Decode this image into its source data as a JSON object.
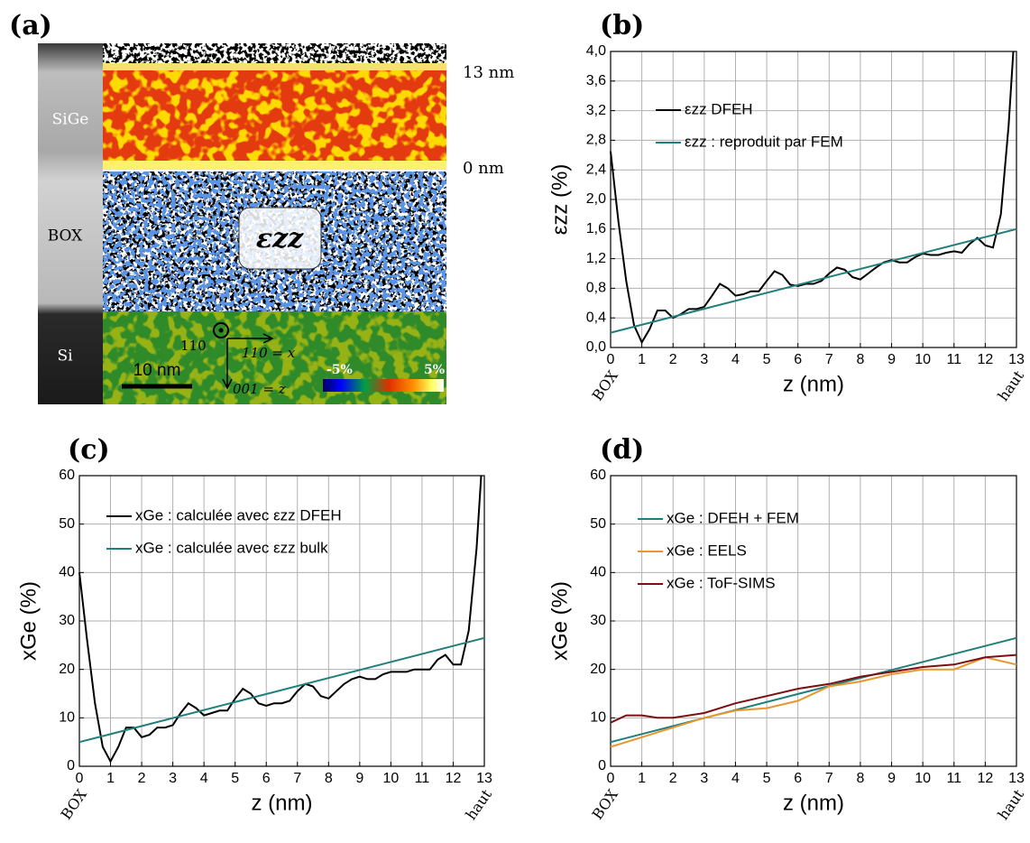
{
  "image_panel": {
    "panel_label": "(a)",
    "layers": [
      "SiGe",
      "BOX",
      "Si"
    ],
    "depth_top": "13 nm",
    "depth_bottom": "0 nm",
    "map_label": "εzz",
    "axis_out": "110",
    "axis_x": "110 = x",
    "axis_z": "001 = z",
    "scale_bar": "10 nm",
    "colorbar_min": "-5%",
    "colorbar_max": "5%"
  },
  "chart_data": [
    {
      "type": "line",
      "panel_label": "(b)",
      "x_label": "z (nm)",
      "y_label": "εzz (%)",
      "xlim": [
        0,
        13
      ],
      "xticks": [
        0,
        1,
        2,
        3,
        4,
        5,
        6,
        7,
        8,
        9,
        10,
        11,
        12,
        13
      ],
      "ylim": [
        0,
        4
      ],
      "yticks": [
        {
          "value": 0,
          "label": "0,0"
        },
        {
          "value": 0.4,
          "label": "0,4"
        },
        {
          "value": 0.8,
          "label": "0,8"
        },
        {
          "value": 1.2,
          "label": "1,2"
        },
        {
          "value": 1.6,
          "label": "1,6"
        },
        {
          "value": 2.0,
          "label": "2,0"
        },
        {
          "value": 2.4,
          "label": "2,4"
        },
        {
          "value": 2.8,
          "label": "2,8"
        },
        {
          "value": 3.2,
          "label": "3,2"
        },
        {
          "value": 3.6,
          "label": "3,6"
        },
        {
          "value": 4.0,
          "label": "4,0"
        }
      ],
      "grid": true,
      "legend": "upper left",
      "annotations": [
        {
          "text": "BOX",
          "x": 0
        },
        {
          "text": "haut",
          "x": 13
        }
      ],
      "series": [
        {
          "name": "εzz DFEH",
          "color": "#000000",
          "x": [
            0,
            0.25,
            0.5,
            0.75,
            1,
            1.25,
            1.5,
            1.75,
            2,
            2.25,
            2.5,
            2.75,
            3,
            3.25,
            3.5,
            3.75,
            4,
            4.25,
            4.5,
            4.75,
            5,
            5.25,
            5.5,
            5.75,
            6,
            6.25,
            6.5,
            6.75,
            7,
            7.25,
            7.5,
            7.75,
            8,
            8.25,
            8.5,
            8.75,
            9,
            9.25,
            9.5,
            9.75,
            10,
            10.25,
            10.5,
            10.75,
            11,
            11.25,
            11.5,
            11.75,
            12,
            12.25,
            12.5,
            12.75,
            12.9
          ],
          "values": [
            2.65,
            1.7,
            0.9,
            0.3,
            0.07,
            0.25,
            0.5,
            0.5,
            0.4,
            0.45,
            0.52,
            0.52,
            0.55,
            0.7,
            0.86,
            0.8,
            0.7,
            0.72,
            0.76,
            0.76,
            0.9,
            1.03,
            0.98,
            0.85,
            0.83,
            0.86,
            0.86,
            0.9,
            1.0,
            1.08,
            1.05,
            0.95,
            0.92,
            1.0,
            1.08,
            1.15,
            1.18,
            1.15,
            1.15,
            1.22,
            1.27,
            1.25,
            1.25,
            1.28,
            1.3,
            1.28,
            1.4,
            1.48,
            1.38,
            1.35,
            1.8,
            3.0,
            4.0
          ]
        },
        {
          "name": "εzz : reproduit par FEM",
          "color": "#1f7f7a",
          "x": [
            0,
            13
          ],
          "values": [
            0.2,
            1.6
          ]
        }
      ]
    },
    {
      "type": "line",
      "panel_label": "(c)",
      "x_label": "z (nm)",
      "y_label": "xGe (%)",
      "xlim": [
        0,
        13
      ],
      "xticks": [
        0,
        1,
        2,
        3,
        4,
        5,
        6,
        7,
        8,
        9,
        10,
        11,
        12,
        13
      ],
      "ylim": [
        0,
        60
      ],
      "yticks": [
        0,
        10,
        20,
        30,
        40,
        50,
        60
      ],
      "grid": true,
      "legend": "upper left",
      "annotations": [
        {
          "text": "BOX",
          "x": 0
        },
        {
          "text": "haut",
          "x": 13
        }
      ],
      "series": [
        {
          "name": "xGe : calculée avec εzz DFEH",
          "color": "#000000",
          "x": [
            0,
            0.25,
            0.5,
            0.75,
            1,
            1.25,
            1.5,
            1.75,
            2,
            2.25,
            2.5,
            2.75,
            3,
            3.25,
            3.5,
            3.75,
            4,
            4.25,
            4.5,
            4.75,
            5,
            5.25,
            5.5,
            5.75,
            6,
            6.25,
            6.5,
            6.75,
            7,
            7.25,
            7.5,
            7.75,
            8,
            8.25,
            8.5,
            8.75,
            9,
            9.25,
            9.5,
            9.75,
            10,
            10.25,
            10.5,
            10.75,
            11,
            11.25,
            11.5,
            11.75,
            12,
            12.25,
            12.5,
            12.75,
            12.9
          ],
          "values": [
            40,
            26,
            13,
            4,
            1,
            4,
            8,
            8,
            6,
            6.5,
            8,
            8,
            8.5,
            11,
            13,
            12,
            10.5,
            11,
            11.5,
            11.5,
            14,
            16,
            15,
            13,
            12.5,
            13,
            13,
            13.5,
            15.5,
            17,
            16.5,
            14.5,
            14,
            15.5,
            17,
            18,
            18.5,
            18,
            18,
            19,
            19.5,
            19.5,
            19.5,
            20,
            20,
            20,
            22,
            23,
            21,
            21,
            28,
            45,
            60
          ]
        },
        {
          "name": "xGe : calculée avec εzz bulk",
          "color": "#1f7f7a",
          "x": [
            0,
            13
          ],
          "values": [
            5,
            26.5
          ]
        }
      ]
    },
    {
      "type": "line",
      "panel_label": "(d)",
      "x_label": "z (nm)",
      "y_label": "xGe (%)",
      "xlim": [
        0,
        13
      ],
      "xticks": [
        0,
        1,
        2,
        3,
        4,
        5,
        6,
        7,
        8,
        9,
        10,
        11,
        12,
        13
      ],
      "ylim": [
        0,
        60
      ],
      "yticks": [
        0,
        10,
        20,
        30,
        40,
        50,
        60
      ],
      "grid": true,
      "legend": "upper left",
      "annotations": [
        {
          "text": "BOX",
          "x": 0
        },
        {
          "text": "haut",
          "x": 13
        }
      ],
      "series": [
        {
          "name": "xGe : DFEH + FEM",
          "color": "#1f7f7a",
          "x": [
            0,
            13
          ],
          "values": [
            5,
            26.5
          ]
        },
        {
          "name": "xGe : EELS",
          "color": "#e8962e",
          "x": [
            0,
            1,
            2,
            3,
            4,
            5,
            6,
            7,
            8,
            9,
            10,
            11,
            12,
            13
          ],
          "values": [
            4,
            6,
            8,
            10,
            11.5,
            12,
            13.5,
            16.5,
            17.5,
            19,
            20,
            20,
            22.5,
            21
          ]
        },
        {
          "name": "xGe : ToF-SIMS",
          "color": "#7a1010",
          "x": [
            0,
            0.5,
            1,
            1.5,
            2,
            3,
            4,
            5,
            6,
            7,
            8,
            9,
            10,
            11,
            12,
            13
          ],
          "values": [
            9,
            10.5,
            10.5,
            10,
            10,
            11,
            13,
            14.5,
            16,
            17,
            18.5,
            19.5,
            20.5,
            21,
            22.5,
            23
          ]
        }
      ]
    }
  ]
}
